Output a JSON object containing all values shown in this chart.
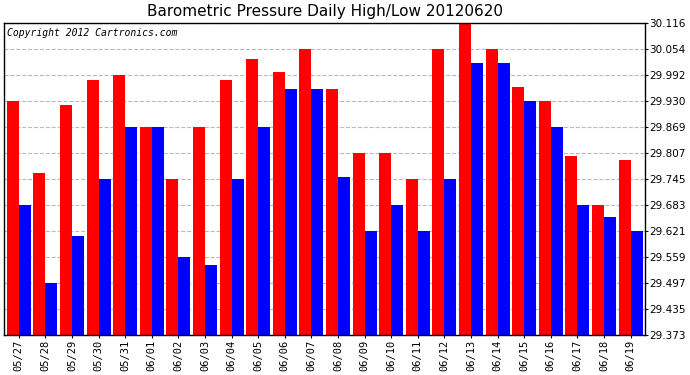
{
  "title": "Barometric Pressure Daily High/Low 20120620",
  "copyright": "Copyright 2012 Cartronics.com",
  "dates": [
    "05/27",
    "05/28",
    "05/29",
    "05/30",
    "05/31",
    "06/01",
    "06/02",
    "06/03",
    "06/04",
    "06/05",
    "06/06",
    "06/07",
    "06/08",
    "06/09",
    "06/10",
    "06/11",
    "06/12",
    "06/13",
    "06/14",
    "06/15",
    "06/16",
    "06/17",
    "06/18",
    "06/19"
  ],
  "highs": [
    29.93,
    29.76,
    29.92,
    29.98,
    29.992,
    29.869,
    29.745,
    29.869,
    29.98,
    30.03,
    30.0,
    30.054,
    29.96,
    29.807,
    29.807,
    29.745,
    30.054,
    30.116,
    30.054,
    29.965,
    29.93,
    29.8,
    29.683,
    29.79
  ],
  "lows": [
    29.683,
    29.497,
    29.61,
    29.745,
    29.869,
    29.869,
    29.559,
    29.54,
    29.745,
    29.869,
    29.96,
    29.96,
    29.75,
    29.621,
    29.683,
    29.621,
    29.745,
    30.02,
    30.02,
    29.93,
    29.869,
    29.683,
    29.655,
    29.621
  ],
  "bar_color_high": "#ff0000",
  "bar_color_low": "#0000ff",
  "background_color": "#ffffff",
  "grid_color": "#bbbbbb",
  "ylim_min": 29.373,
  "ylim_max": 30.116,
  "yticks": [
    29.373,
    29.435,
    29.497,
    29.559,
    29.621,
    29.683,
    29.745,
    29.807,
    29.869,
    29.93,
    29.992,
    30.054,
    30.116
  ],
  "title_fontsize": 11,
  "tick_fontsize": 7.5,
  "copyright_fontsize": 7
}
